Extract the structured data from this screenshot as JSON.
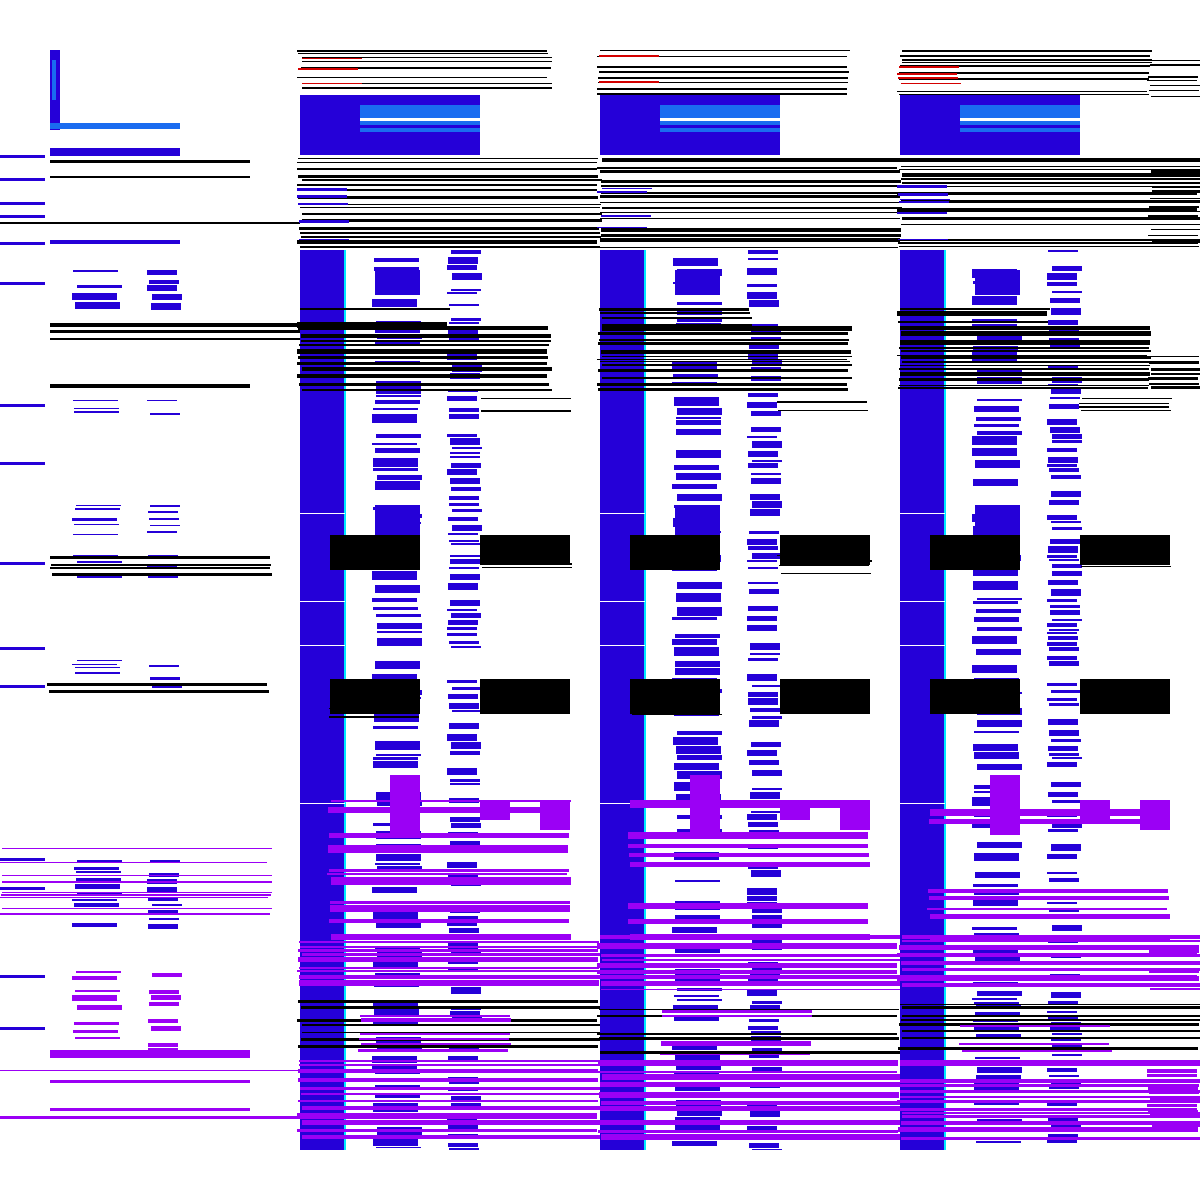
{
  "palette": {
    "background": "#ffffff",
    "blue": "#2500d8",
    "violet": "#9b00f5",
    "black": "#000000",
    "cyan": "#00e8ff",
    "sky": "#1a6cf0",
    "red": "#d40000"
  },
  "panels": [
    "left-panel",
    "glitch-column-1",
    "glitch-column-2",
    "glitch-column-3"
  ]
}
